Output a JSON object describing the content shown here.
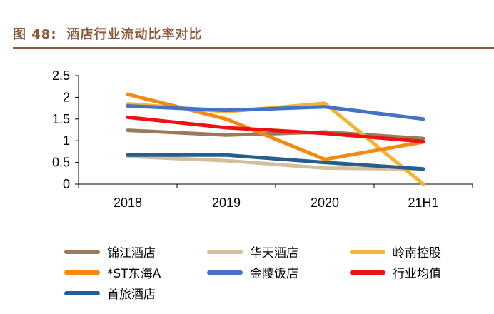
{
  "header": {
    "figure_number": "图 48:",
    "title": "酒店行业流动比率对比"
  },
  "chart_data": {
    "type": "line",
    "title": "",
    "xlabel": "",
    "ylabel": "",
    "categories": [
      "2018",
      "2019",
      "2020",
      "21H1"
    ],
    "ylim": [
      0,
      2.5
    ],
    "yticks": [
      0,
      0.5,
      1,
      1.5,
      2,
      2.5
    ],
    "ytick_labels": [
      "0",
      "0.5",
      "1",
      "1.5",
      "2",
      "2.5"
    ],
    "grid": false,
    "legend_position": "bottom",
    "series": [
      {
        "name": "锦江酒店",
        "color": "#9b7a5a",
        "values": [
          1.24,
          1.13,
          1.2,
          1.05
        ]
      },
      {
        "name": "华天酒店",
        "color": "#d3c09a",
        "values": [
          0.64,
          0.54,
          0.37,
          0.35
        ]
      },
      {
        "name": "岭南控股",
        "color": "#f5b335",
        "values": [
          1.85,
          1.67,
          1.86,
          0.0
        ]
      },
      {
        "name": "*ST东海A",
        "color": "#f28a10",
        "values": [
          2.07,
          1.5,
          0.57,
          0.97
        ]
      },
      {
        "name": "金陵饭店",
        "color": "#4472c4",
        "values": [
          1.8,
          1.7,
          1.78,
          1.5
        ]
      },
      {
        "name": "行业均值",
        "color": "#ee1111",
        "values": [
          1.54,
          1.3,
          1.17,
          0.98
        ]
      },
      {
        "name": "首旅酒店",
        "color": "#255e91",
        "values": [
          0.67,
          0.67,
          0.5,
          0.35
        ]
      }
    ]
  }
}
